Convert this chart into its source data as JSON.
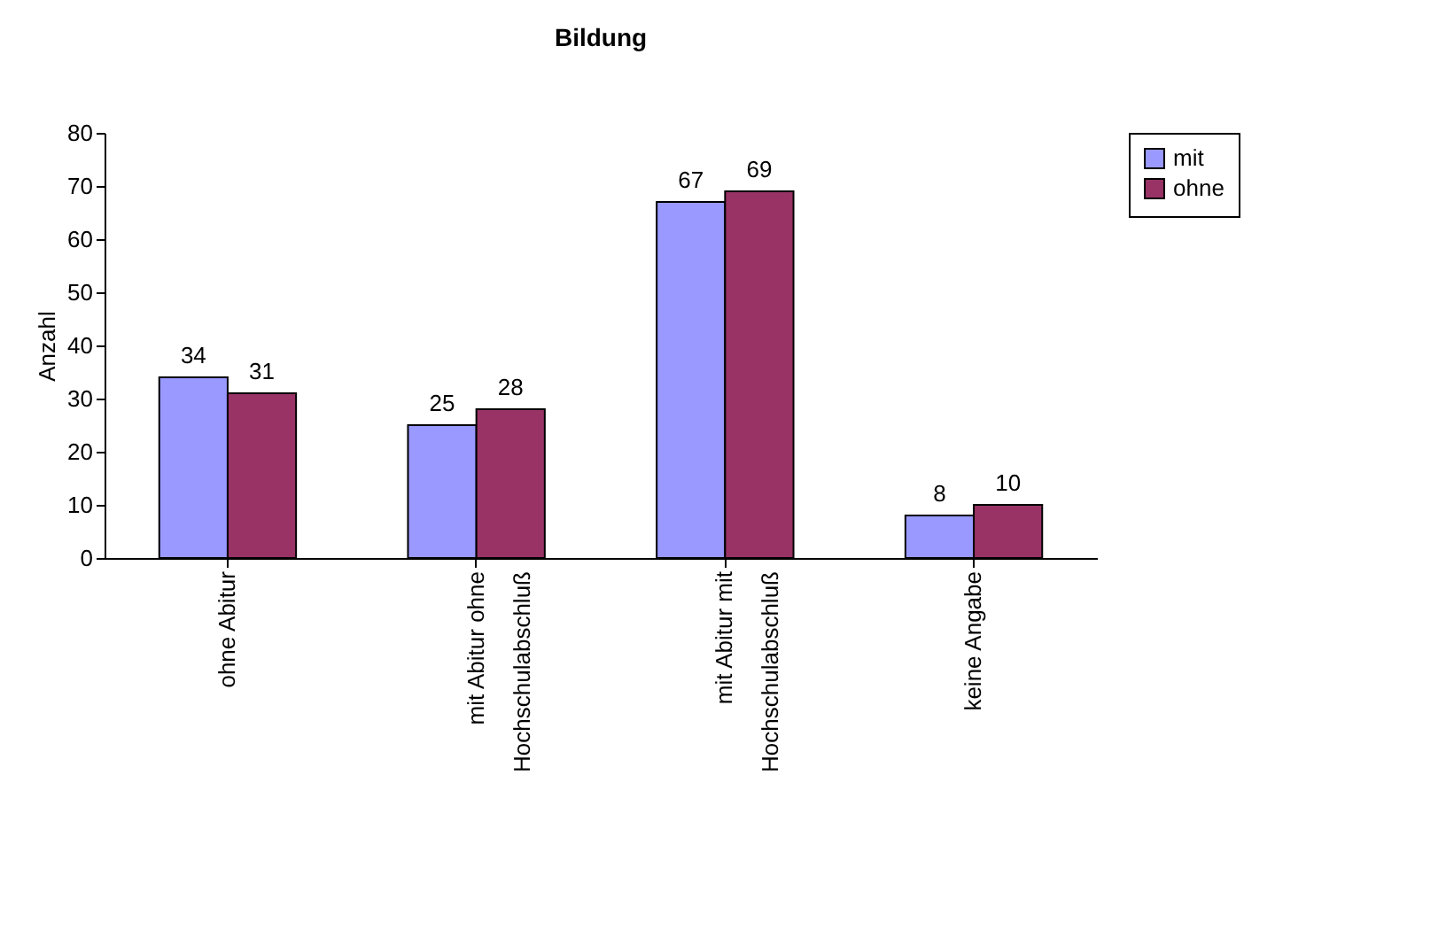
{
  "chart_data": {
    "type": "bar",
    "title": "Bildung",
    "ylabel": "Anzahl",
    "categories": [
      "ohne Abitur",
      "mit Abitur ohne Hochschulabschluß",
      "mit Abitur mit Hochschulabschluß",
      "keine Angabe"
    ],
    "series": [
      {
        "name": "mit",
        "color": "#9999ff",
        "values": [
          34,
          25,
          67,
          8
        ]
      },
      {
        "name": "ohne",
        "color": "#993366",
        "values": [
          31,
          28,
          69,
          10
        ]
      }
    ],
    "ylim": [
      0,
      80
    ],
    "yticks": [
      0,
      10,
      20,
      30,
      40,
      50,
      60,
      70,
      80
    ],
    "grid": false,
    "legend": "right",
    "data_labels": true
  }
}
